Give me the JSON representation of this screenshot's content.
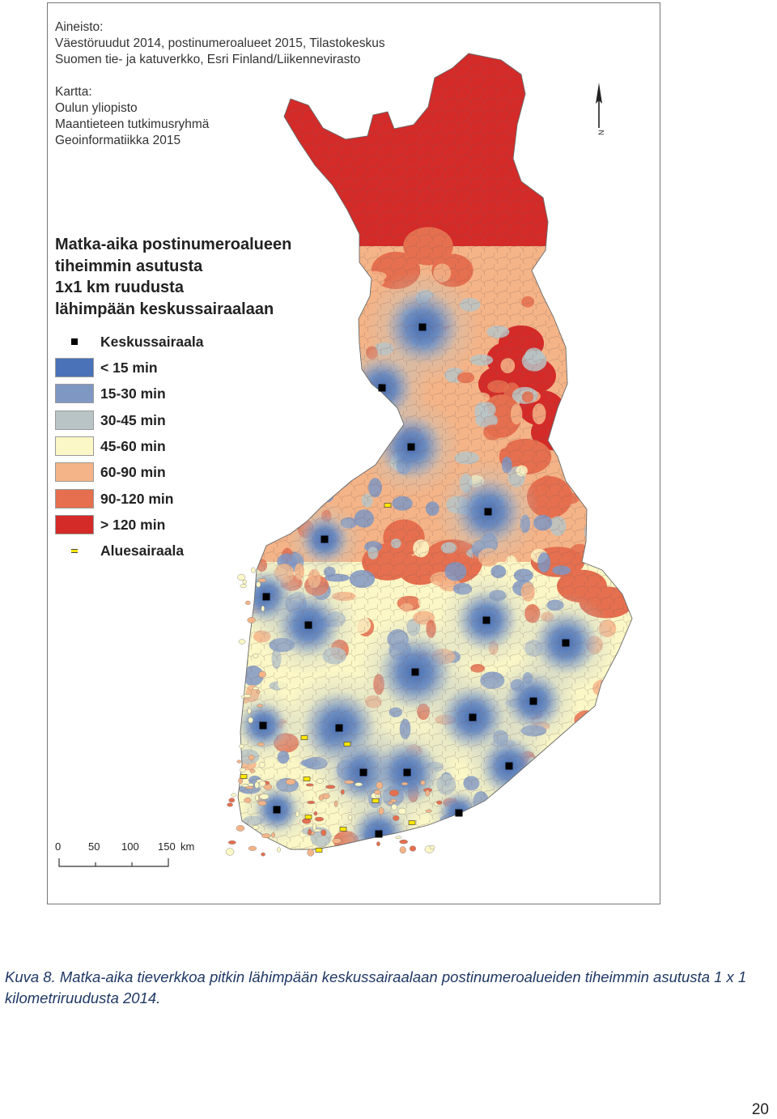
{
  "map": {
    "source": {
      "heading": "Aineisto:",
      "lines": [
        "Väestöruudut 2014, postinumeroalueet 2015, Tilastokeskus",
        "Suomen tie- ja katuverkko, Esri Finland/Liikennevirasto"
      ]
    },
    "credits": {
      "heading": "Kartta:",
      "lines": [
        "Oulun yliopisto",
        "Maantieteen tutkimusryhmä",
        "Geoinformatiikka 2015"
      ]
    },
    "legend": {
      "title_lines": [
        "Matka-aika postinumeroalueen",
        "tiheimmin asutusta",
        "1x1 km ruudusta",
        "lähimpään keskussairaalaan"
      ],
      "hospital_label": "Keskussairaala",
      "classes": [
        {
          "label": "< 15 min",
          "color": "#4a72b8"
        },
        {
          "label": "15-30 min",
          "color": "#7f97c3"
        },
        {
          "label": "30-45 min",
          "color": "#b8c4c6"
        },
        {
          "label": "45-60 min",
          "color": "#fbf7c6"
        },
        {
          "label": "60-90 min",
          "color": "#f4b487"
        },
        {
          "label": "90-120 min",
          "color": "#e56f4e"
        },
        {
          "label": "> 120 min",
          "color": "#d42a28"
        }
      ],
      "regional_label": "Aluesairaala"
    },
    "scale": {
      "ticks": [
        "0",
        "50",
        "100",
        "150"
      ],
      "unit": "km"
    },
    "north_letter": "N"
  },
  "caption": "Kuva 8. Matka-aika tieverkkoa pitkin lähimpään keskussairaalaan postinumeroalueiden tiheimmin asutusta 1 x 1 kilometriruudusta 2014.",
  "page_number": "20"
}
